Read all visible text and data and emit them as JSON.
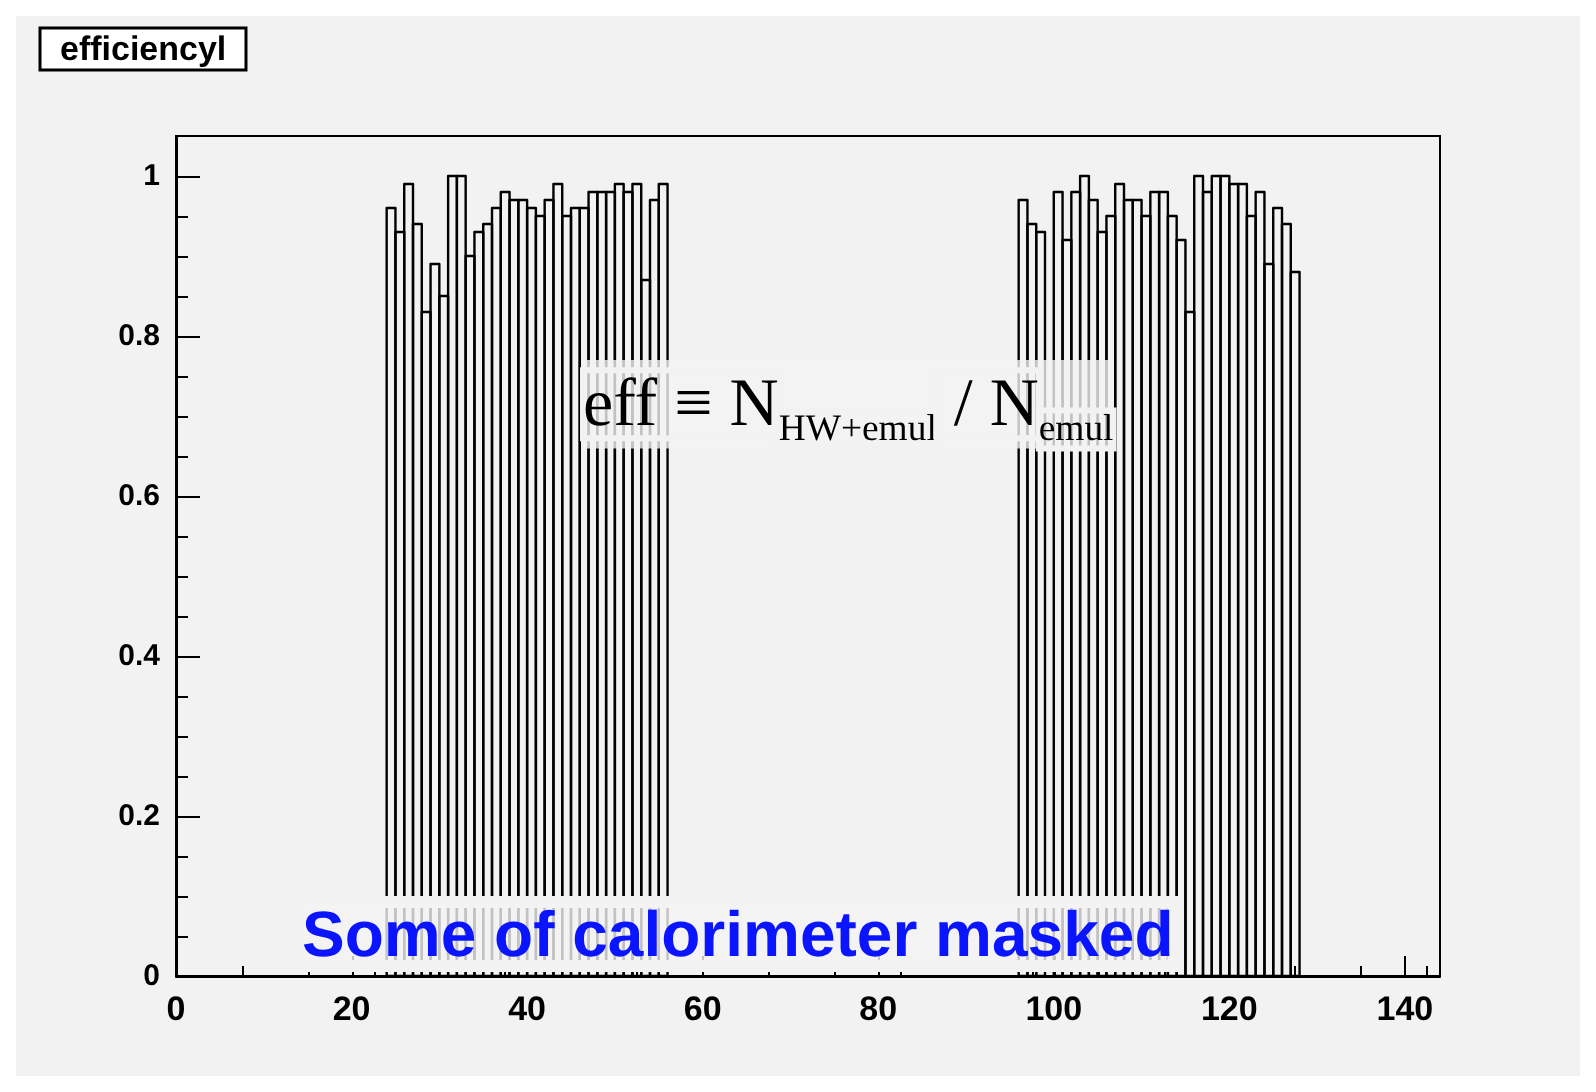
{
  "chart_data": {
    "type": "histogram",
    "title": "efficiencyl",
    "bins": [
      24,
      25,
      26,
      27,
      28,
      29,
      30,
      31,
      32,
      33,
      34,
      35,
      36,
      37,
      38,
      39,
      40,
      41,
      42,
      43,
      44,
      45,
      46,
      47,
      48,
      49,
      50,
      51,
      52,
      53,
      54,
      55,
      56,
      57,
      58,
      59,
      60,
      61,
      62,
      63,
      64,
      65,
      66,
      67,
      68,
      69,
      70,
      71,
      72,
      73,
      74,
      75,
      76,
      77,
      78,
      79,
      80,
      81,
      82,
      83,
      84,
      85,
      86,
      87,
      88,
      89,
      90,
      91,
      92,
      93,
      94,
      95,
      96,
      97,
      98,
      99,
      100,
      101,
      102,
      103,
      104,
      105,
      106,
      107,
      108,
      109,
      110,
      111,
      112,
      113,
      114,
      115,
      116,
      117,
      118,
      119,
      120,
      121,
      122,
      123,
      124,
      125,
      126,
      127,
      128
    ],
    "values": [
      0.96,
      0.93,
      0.99,
      0.94,
      0.83,
      0.89,
      0.85,
      1.0,
      1.0,
      0.9,
      0.93,
      0.94,
      0.96,
      0.98,
      0.97,
      0.97,
      0.96,
      0.95,
      0.97,
      0.99,
      0.95,
      0.96,
      0.96,
      0.98,
      0.98,
      0.98,
      0.99,
      0.98,
      0.99,
      0.87,
      0.97,
      0.99,
      null,
      null,
      null,
      null,
      null,
      null,
      null,
      null,
      null,
      null,
      null,
      null,
      null,
      null,
      null,
      null,
      null,
      null,
      null,
      null,
      null,
      null,
      null,
      null,
      null,
      null,
      null,
      null,
      null,
      null,
      null,
      null,
      null,
      null,
      null,
      null,
      null,
      null,
      null,
      null,
      0.97,
      0.94,
      0.93,
      null,
      0.98,
      0.92,
      0.98,
      1.0,
      0.97,
      0.93,
      0.95,
      0.99,
      0.97,
      0.97,
      0.95,
      0.98,
      0.98,
      0.95,
      0.92,
      0.83,
      1.0,
      0.98,
      1.0,
      1.0,
      0.99,
      0.99,
      0.95,
      0.98,
      0.89,
      0.96,
      0.94,
      0.88
    ],
    "color": "#000000",
    "xlim": [
      0,
      144
    ],
    "xticks": [
      0,
      20,
      40,
      60,
      80,
      100,
      120,
      140
    ],
    "ylim": [
      0,
      1.05
    ],
    "yticks": [
      0,
      0.2,
      0.4,
      0.6,
      0.8,
      1
    ],
    "grid": false,
    "annotations": [
      {
        "text": "eff ≡ N$_{HW+emul}$ / N$_{emul}$"
      },
      {
        "text": "Some of calorimeter masked"
      }
    ]
  }
}
